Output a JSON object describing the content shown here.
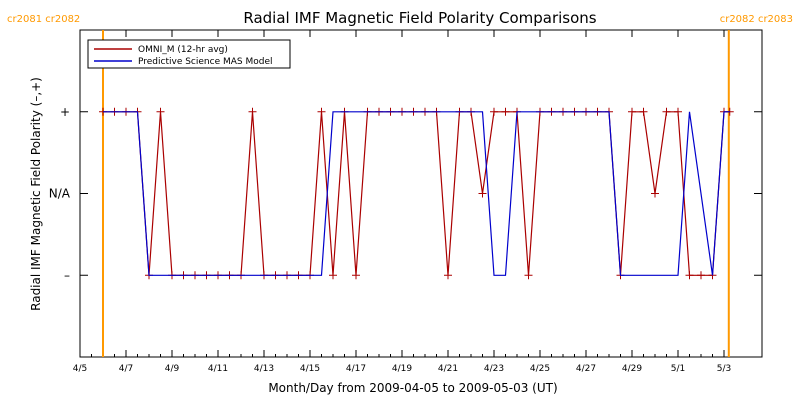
{
  "chart_data": {
    "type": "line",
    "title": "Radial IMF Magnetic Field Polarity Comparisons",
    "xlabel": "Month/Day from 2009-04-05 to 2009-05-03 (UT)",
    "ylabel": "Radial IMF Magnetic Field Polarity (–,+)",
    "x_unit": "day of month (April/May 2009), fractional",
    "xlim": [
      "2009-04-05",
      "2009-05-03"
    ],
    "ylim": [
      -2,
      2
    ],
    "y_ticks": [
      {
        "value": 1,
        "label": "+"
      },
      {
        "value": 0,
        "label": "N/A"
      },
      {
        "value": -1,
        "label": "–"
      }
    ],
    "x_ticks": [
      {
        "date": "2009-04-05",
        "label": "4/5"
      },
      {
        "date": "2009-04-07",
        "label": "4/7"
      },
      {
        "date": "2009-04-09",
        "label": "4/9"
      },
      {
        "date": "2009-04-11",
        "label": "4/11"
      },
      {
        "date": "2009-04-13",
        "label": "4/13"
      },
      {
        "date": "2009-04-15",
        "label": "4/15"
      },
      {
        "date": "2009-04-17",
        "label": "4/17"
      },
      {
        "date": "2009-04-19",
        "label": "4/19"
      },
      {
        "date": "2009-04-21",
        "label": "4/21"
      },
      {
        "date": "2009-04-23",
        "label": "4/23"
      },
      {
        "date": "2009-04-25",
        "label": "4/25"
      },
      {
        "date": "2009-04-27",
        "label": "4/27"
      },
      {
        "date": "2009-04-29",
        "label": "4/29"
      },
      {
        "date": "2009-05-01",
        "label": "5/1"
      },
      {
        "date": "2009-05-03",
        "label": "5/3"
      }
    ],
    "carrington_boundaries": [
      {
        "date": "2009-04-06 00:00",
        "label": "cr2081 cr2082",
        "label_side": "left",
        "color": "#ff9900"
      },
      {
        "date": "2009-05-03 05:00",
        "label": "cr2082 cr2083",
        "label_side": "right",
        "color": "#ff9900"
      }
    ],
    "legend": {
      "position": "top-left",
      "entries": [
        {
          "name": "OMNI_M (12-hr avg)",
          "color": "#aa0000"
        },
        {
          "name": "Predictive Science MAS Model",
          "color": "#0000cc"
        }
      ]
    },
    "series": [
      {
        "name": "OMNI_M (12-hr avg)",
        "color": "#aa0000",
        "marker": "plus",
        "x": [
          "2009-04-06 00:00",
          "2009-04-06 12:00",
          "2009-04-07 00:00",
          "2009-04-07 12:00",
          "2009-04-08 00:00",
          "2009-04-08 12:00",
          "2009-04-09 00:00",
          "2009-04-09 12:00",
          "2009-04-10 00:00",
          "2009-04-10 12:00",
          "2009-04-11 00:00",
          "2009-04-11 12:00",
          "2009-04-12 00:00",
          "2009-04-12 12:00",
          "2009-04-13 00:00",
          "2009-04-13 12:00",
          "2009-04-14 00:00",
          "2009-04-14 12:00",
          "2009-04-15 00:00",
          "2009-04-15 12:00",
          "2009-04-16 00:00",
          "2009-04-16 12:00",
          "2009-04-17 00:00",
          "2009-04-17 12:00",
          "2009-04-18 00:00",
          "2009-04-18 12:00",
          "2009-04-19 00:00",
          "2009-04-19 12:00",
          "2009-04-20 00:00",
          "2009-04-20 12:00",
          "2009-04-21 00:00",
          "2009-04-21 12:00",
          "2009-04-22 00:00",
          "2009-04-22 12:00",
          "2009-04-23 00:00",
          "2009-04-23 12:00",
          "2009-04-24 00:00",
          "2009-04-24 12:00",
          "2009-04-25 00:00",
          "2009-04-25 12:00",
          "2009-04-26 00:00",
          "2009-04-26 12:00",
          "2009-04-27 00:00",
          "2009-04-27 12:00",
          "2009-04-28 00:00",
          "2009-04-28 12:00",
          "2009-04-29 00:00",
          "2009-04-29 12:00",
          "2009-04-30 00:00",
          "2009-04-30 12:00",
          "2009-05-01 00:00",
          "2009-05-01 12:00",
          "2009-05-02 00:00",
          "2009-05-02 12:00",
          "2009-05-03 00:00",
          "2009-05-03 06:00"
        ],
        "y": [
          1,
          1,
          1,
          1,
          -1,
          1,
          -1,
          -1,
          -1,
          -1,
          -1,
          -1,
          -1,
          1,
          -1,
          -1,
          -1,
          -1,
          -1,
          1,
          -1,
          1,
          -1,
          1,
          1,
          1,
          1,
          1,
          1,
          1,
          -1,
          1,
          1,
          0,
          1,
          1,
          1,
          -1,
          1,
          1,
          1,
          1,
          1,
          1,
          1,
          -1,
          1,
          1,
          0,
          1,
          1,
          -1,
          -1,
          -1,
          1,
          1
        ]
      },
      {
        "name": "Predictive Science MAS Model",
        "color": "#0000cc",
        "marker": "none",
        "x": [
          "2009-04-06 00:00",
          "2009-04-07 12:00",
          "2009-04-08 00:00",
          "2009-04-15 12:00",
          "2009-04-16 00:00",
          "2009-04-22 12:00",
          "2009-04-23 00:00",
          "2009-04-23 12:00",
          "2009-04-24 00:00",
          "2009-04-28 00:00",
          "2009-04-28 12:00",
          "2009-05-01 00:00",
          "2009-05-01 12:00",
          "2009-05-02 12:00",
          "2009-05-03 00:00",
          "2009-05-03 06:00"
        ],
        "y": [
          1,
          1,
          -1,
          -1,
          1,
          1,
          -1,
          -1,
          1,
          1,
          -1,
          -1,
          1,
          -1,
          1,
          1
        ]
      }
    ]
  }
}
